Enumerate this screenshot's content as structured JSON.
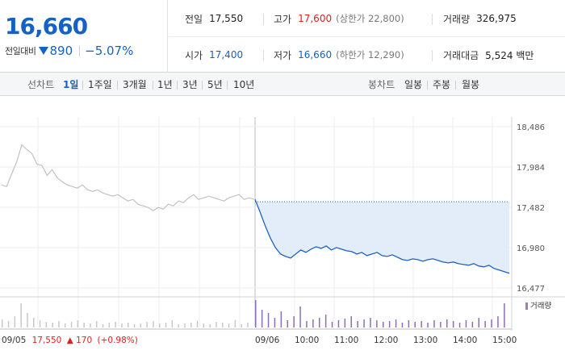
{
  "quote": {
    "price": "16,660",
    "change_label": "전일대비",
    "change_icon": "down-triangle-icon",
    "change_value": "890",
    "change_rate": "−5.07%",
    "stats": {
      "prev_close": {
        "label": "전일",
        "value": "17,550"
      },
      "high": {
        "label": "고가",
        "value": "17,600",
        "sub": "(상한가 22,800)"
      },
      "volume": {
        "label": "거래량",
        "value": "326,975"
      },
      "open": {
        "label": "시가",
        "value": "17,400"
      },
      "low": {
        "label": "저가",
        "value": "16,660",
        "sub": "(하한가 12,290)"
      },
      "trade_value": {
        "label": "거래대금",
        "value": "5,524 백만"
      }
    },
    "colors": {
      "up": "#e02020",
      "down": "#1462c8"
    }
  },
  "tabs": {
    "line_label": "선차트",
    "line_tabs": [
      "1일",
      "1주일",
      "3개월",
      "1년",
      "3년",
      "5년",
      "10년"
    ],
    "active_line_tab": "1일",
    "candle_label": "봉차트",
    "candle_tabs": [
      "일봉",
      "주봉",
      "월봉"
    ]
  },
  "chart_data": {
    "type": "line",
    "y_ticks": [
      "18,486",
      "17,984",
      "17,482",
      "16,980",
      "16,477"
    ],
    "ylim": [
      16477,
      18486
    ],
    "prev_close": 17550,
    "x_ticks": [
      "09/05",
      "09/06",
      "10:00",
      "11:00",
      "12:00",
      "13:00",
      "14:00",
      "15:00"
    ],
    "prev_day_note": {
      "label": "09/05",
      "price": "17,550",
      "arrow": "▲",
      "change": "170",
      "rate": "(+0.98%)"
    },
    "volume_legend": "거래량",
    "series": [
      {
        "name": "09/05",
        "x": [
          0,
          2,
          4,
          6,
          8,
          10,
          12,
          14,
          16,
          18,
          20,
          22,
          24,
          26,
          28,
          30,
          32,
          34,
          36,
          38,
          40,
          42,
          44,
          46,
          48,
          50,
          52,
          54,
          56,
          58,
          60,
          62,
          64,
          66,
          68,
          70,
          72,
          74,
          76,
          78,
          80,
          82,
          84,
          86,
          88,
          90,
          92,
          94,
          96,
          98,
          100
        ],
        "y": [
          17760,
          17740,
          17900,
          18050,
          18260,
          18200,
          18150,
          18020,
          18000,
          17880,
          17950,
          17850,
          17800,
          17760,
          17740,
          17720,
          17760,
          17700,
          17680,
          17700,
          17660,
          17640,
          17620,
          17640,
          17600,
          17560,
          17580,
          17520,
          17500,
          17480,
          17440,
          17480,
          17460,
          17520,
          17500,
          17560,
          17540,
          17600,
          17640,
          17580,
          17600,
          17620,
          17600,
          17580,
          17560,
          17600,
          17620,
          17640,
          17580,
          17600,
          17580
        ]
      },
      {
        "name": "09/06",
        "x": [
          0,
          2,
          4,
          6,
          8,
          10,
          12,
          14,
          16,
          18,
          20,
          22,
          24,
          26,
          28,
          30,
          32,
          34,
          36,
          38,
          40,
          42,
          44,
          46,
          48,
          50,
          52,
          54,
          56,
          58,
          60,
          62,
          64,
          66,
          68,
          70,
          72,
          74,
          76,
          78,
          80,
          82,
          84,
          86,
          88,
          90,
          92,
          94,
          96,
          98,
          100
        ],
        "y": [
          17580,
          17420,
          17250,
          17100,
          16980,
          16900,
          16870,
          16850,
          16900,
          16950,
          16920,
          16960,
          16990,
          16970,
          17000,
          16950,
          16980,
          16960,
          16940,
          16930,
          16900,
          16920,
          16880,
          16900,
          16920,
          16880,
          16870,
          16890,
          16860,
          16830,
          16820,
          16840,
          16830,
          16810,
          16830,
          16840,
          16820,
          16800,
          16790,
          16800,
          16780,
          16770,
          16760,
          16780,
          16750,
          16740,
          16760,
          16720,
          16700,
          16680,
          16660
        ]
      }
    ]
  }
}
